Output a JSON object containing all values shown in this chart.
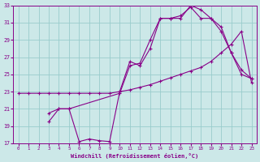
{
  "xlabel": "Windchill (Refroidissement éolien,°C)",
  "background_color": "#cce8e8",
  "grid_color": "#99cccc",
  "line_color": "#880088",
  "xlim": [
    -0.5,
    23.5
  ],
  "ylim": [
    17,
    33
  ],
  "xticks": [
    0,
    1,
    2,
    3,
    4,
    5,
    6,
    7,
    8,
    9,
    10,
    11,
    12,
    13,
    14,
    15,
    16,
    17,
    18,
    19,
    20,
    21,
    22,
    23
  ],
  "yticks": [
    17,
    19,
    21,
    23,
    25,
    27,
    29,
    31,
    33
  ],
  "series1_x": [
    0,
    1,
    2,
    3,
    4,
    5,
    6,
    7,
    8,
    9,
    10,
    11,
    12,
    13,
    14,
    15,
    16,
    17,
    18,
    19,
    20,
    21,
    22,
    23
  ],
  "series1_y": [
    22.8,
    22.8,
    22.8,
    22.8,
    22.8,
    22.8,
    22.8,
    22.8,
    22.8,
    22.8,
    23.0,
    23.2,
    23.5,
    23.8,
    24.2,
    24.6,
    25.0,
    25.4,
    25.8,
    26.5,
    27.5,
    28.5,
    30.0,
    24.0
  ],
  "series2_x": [
    3,
    4,
    5,
    6,
    7,
    8,
    9,
    10,
    11,
    12,
    13,
    14,
    15,
    16,
    17,
    18,
    19,
    20,
    21,
    22,
    23
  ],
  "series2_y": [
    20.5,
    21.0,
    21.0,
    17.2,
    17.5,
    17.3,
    17.2,
    23.0,
    26.5,
    26.0,
    28.0,
    31.5,
    31.5,
    31.5,
    33.0,
    32.5,
    31.5,
    30.5,
    27.5,
    25.5,
    24.5
  ],
  "series3_x": [
    3,
    4,
    5,
    10,
    11,
    12,
    13,
    14,
    15,
    16,
    17,
    18,
    19,
    20,
    21,
    22,
    23
  ],
  "series3_y": [
    19.5,
    21.0,
    21.0,
    22.8,
    26.0,
    26.3,
    29.0,
    31.5,
    31.5,
    31.8,
    32.8,
    31.5,
    31.5,
    30.0,
    27.5,
    25.0,
    24.5
  ]
}
